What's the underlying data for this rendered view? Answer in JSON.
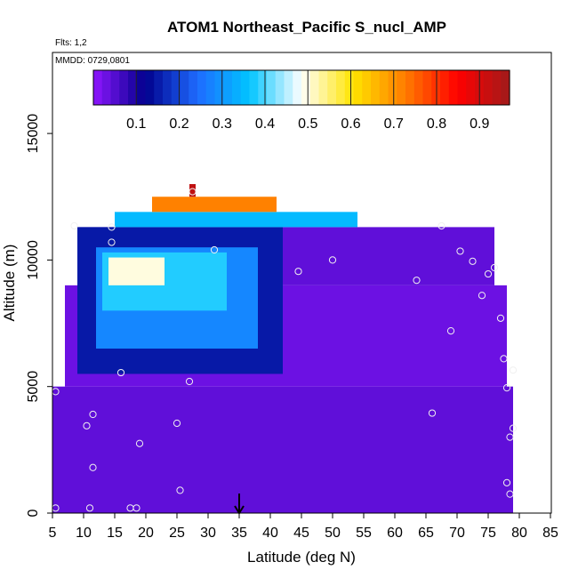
{
  "chart_data": {
    "type": "heatmap",
    "title": "ATOM1 Northeast_Pacific S_nucl_AMP",
    "flights_label": "Flts: 1,2",
    "date_label": "MMDD: 0729,0801",
    "xlabel": "Latitude (deg N)",
    "ylabel": "Altitude (m)",
    "xlim": [
      5,
      85
    ],
    "ylim": [
      0,
      17500
    ],
    "x_ticks": [
      "5",
      "10",
      "15",
      "20",
      "25",
      "30",
      "35",
      "40",
      "45",
      "50",
      "55",
      "60",
      "65",
      "70",
      "75",
      "80",
      "85"
    ],
    "y_ticks": [
      "0",
      "5000",
      "10000",
      "15000"
    ],
    "y_tick_values": [
      0,
      5000,
      10000,
      15000
    ],
    "colorbar": {
      "range": [
        0,
        0.97
      ],
      "ticks": [
        "0.1",
        "0.2",
        "0.3",
        "0.4",
        "0.5",
        "0.6",
        "0.7",
        "0.8",
        "0.9"
      ],
      "tick_values": [
        0.1,
        0.2,
        0.3,
        0.4,
        0.5,
        0.6,
        0.7,
        0.8,
        0.9
      ],
      "colors": [
        "#8f16ff",
        "#00008c",
        "#1f6bff",
        "#00c4ff",
        "#ffffff",
        "#ffe400",
        "#ff7b00",
        "#ff0000",
        "#a01a1a"
      ]
    },
    "arrow_latitude": 35,
    "regions": [
      {
        "lat": [
          5,
          79
        ],
        "alt": [
          0,
          5000
        ],
        "value": 0.04
      },
      {
        "lat": [
          7,
          78
        ],
        "alt": [
          5000,
          9000
        ],
        "value": 0.03
      },
      {
        "lat": [
          9,
          76
        ],
        "alt": [
          9000,
          11300
        ],
        "value": 0.04
      },
      {
        "lat": [
          9,
          42
        ],
        "alt": [
          5500,
          11300
        ],
        "value": 0.15
      },
      {
        "lat": [
          12,
          38
        ],
        "alt": [
          6500,
          10500
        ],
        "value": 0.28
      },
      {
        "lat": [
          13,
          33
        ],
        "alt": [
          8000,
          10300
        ],
        "value": 0.38
      },
      {
        "lat": [
          14,
          23
        ],
        "alt": [
          9000,
          10100
        ],
        "value": 0.5
      },
      {
        "lat": [
          15,
          54
        ],
        "alt": [
          11300,
          11900
        ],
        "value": 0.35
      },
      {
        "lat": [
          21,
          41
        ],
        "alt": [
          11900,
          12500
        ],
        "value": 0.72
      },
      {
        "lat": [
          27,
          28
        ],
        "alt": [
          12500,
          13000
        ],
        "value": 0.93
      }
    ],
    "points": [
      {
        "lat": 5.5,
        "alt": 200
      },
      {
        "lat": 11,
        "alt": 200
      },
      {
        "lat": 17.5,
        "alt": 200
      },
      {
        "lat": 18.5,
        "alt": 200
      },
      {
        "lat": 11.5,
        "alt": 1800
      },
      {
        "lat": 19,
        "alt": 2750
      },
      {
        "lat": 25.5,
        "alt": 900
      },
      {
        "lat": 10.5,
        "alt": 3450
      },
      {
        "lat": 11.5,
        "alt": 3900
      },
      {
        "lat": 25,
        "alt": 3550
      },
      {
        "lat": 5.5,
        "alt": 4800
      },
      {
        "lat": 16,
        "alt": 5550
      },
      {
        "lat": 27,
        "alt": 5200
      },
      {
        "lat": 8.5,
        "alt": 11350
      },
      {
        "lat": 14.5,
        "alt": 11300
      },
      {
        "lat": 14.5,
        "alt": 10700
      },
      {
        "lat": 27.5,
        "alt": 12700
      },
      {
        "lat": 31,
        "alt": 10400
      },
      {
        "lat": 44.5,
        "alt": 9550
      },
      {
        "lat": 50,
        "alt": 10000
      },
      {
        "lat": 63.5,
        "alt": 9200
      },
      {
        "lat": 66,
        "alt": 3950
      },
      {
        "lat": 67.5,
        "alt": 11350
      },
      {
        "lat": 69,
        "alt": 7200
      },
      {
        "lat": 70.5,
        "alt": 10350
      },
      {
        "lat": 72.5,
        "alt": 9950
      },
      {
        "lat": 74,
        "alt": 8600
      },
      {
        "lat": 75,
        "alt": 9450
      },
      {
        "lat": 76,
        "alt": 9700
      },
      {
        "lat": 77,
        "alt": 7700
      },
      {
        "lat": 77.5,
        "alt": 6100
      },
      {
        "lat": 78,
        "alt": 4950
      },
      {
        "lat": 79,
        "alt": 5650
      },
      {
        "lat": 79,
        "alt": 3350
      },
      {
        "lat": 78.5,
        "alt": 3000
      },
      {
        "lat": 78,
        "alt": 1200
      },
      {
        "lat": 78.5,
        "alt": 750
      }
    ]
  }
}
